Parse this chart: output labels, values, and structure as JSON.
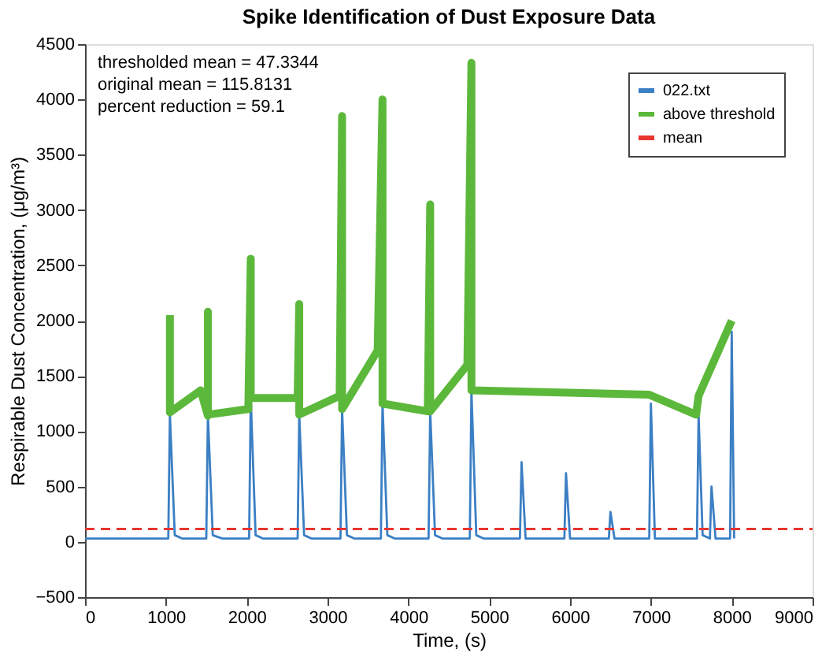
{
  "chart_data": {
    "type": "line",
    "title": "Spike Identification of Dust Exposure Data",
    "xlabel": "Time, (s)",
    "ylabel": "Respirable Dust Concentration, (μg/m³)",
    "xlim": [
      0,
      9000
    ],
    "xticks": [
      0,
      1000,
      2000,
      3000,
      4000,
      5000,
      6000,
      7000,
      8000,
      9000
    ],
    "ylim": [
      -500,
      4500
    ],
    "yticks": [
      -500,
      0,
      500,
      1000,
      1500,
      2000,
      2500,
      3000,
      3500,
      4000,
      4500
    ],
    "grid": false,
    "legend": "top right",
    "line_style": "solid",
    "annotations": [
      "thresholded mean = 47.3344",
      "original mean = 115.8131",
      "percent reduction = 59.1"
    ],
    "ref_lines": [
      {
        "axis": "y",
        "value": 115.8131,
        "label": "mean",
        "color": "#e8362e",
        "line_style": "dashed"
      }
    ],
    "series": [
      {
        "name": "022.txt",
        "color": "#3b7fc4",
        "x": [
          0,
          1030,
          1050,
          1110,
          1200,
          1500,
          1520,
          1580,
          1700,
          2030,
          2050,
          2110,
          2200,
          2630,
          2650,
          2710,
          2800,
          3160,
          3180,
          3240,
          3330,
          3660,
          3680,
          3740,
          3830,
          4250,
          4270,
          4330,
          4420,
          4760,
          4780,
          4840,
          4930,
          5380,
          5400,
          5450,
          5930,
          5950,
          6000,
          6480,
          6500,
          6550,
          6980,
          7000,
          7050,
          7570,
          7590,
          7640,
          7730,
          7750,
          7800,
          7980,
          8000,
          8030
        ],
        "values": [
          30,
          30,
          1150,
          60,
          30,
          30,
          1150,
          60,
          30,
          30,
          1300,
          60,
          30,
          30,
          1150,
          60,
          30,
          30,
          1200,
          60,
          30,
          30,
          1250,
          60,
          30,
          30,
          1180,
          60,
          30,
          30,
          1370,
          60,
          30,
          30,
          720,
          30,
          30,
          620,
          30,
          30,
          270,
          30,
          30,
          1250,
          30,
          30,
          1150,
          60,
          30,
          500,
          30,
          30,
          1900,
          30
        ]
      },
      {
        "name": "above threshold",
        "color": "#5cb83a",
        "x": [
          1050,
          1050,
          1050,
          1430,
          1520,
          1520,
          1520,
          2020,
          2050,
          2050,
          2630,
          2650,
          2650,
          3150,
          3180,
          3180,
          3620,
          3680,
          3680,
          4240,
          4270,
          4270,
          4730,
          4780,
          4780,
          6980,
          7560,
          7590,
          8000
        ],
        "values": [
          2050,
          1170,
          1170,
          1370,
          1140,
          2080,
          1150,
          1200,
          2560,
          1300,
          1300,
          2150,
          1150,
          1320,
          3850,
          1200,
          1730,
          4000,
          1250,
          1180,
          3050,
          1180,
          1600,
          4330,
          1370,
          1330,
          1150,
          1320,
          2000
        ]
      }
    ]
  }
}
